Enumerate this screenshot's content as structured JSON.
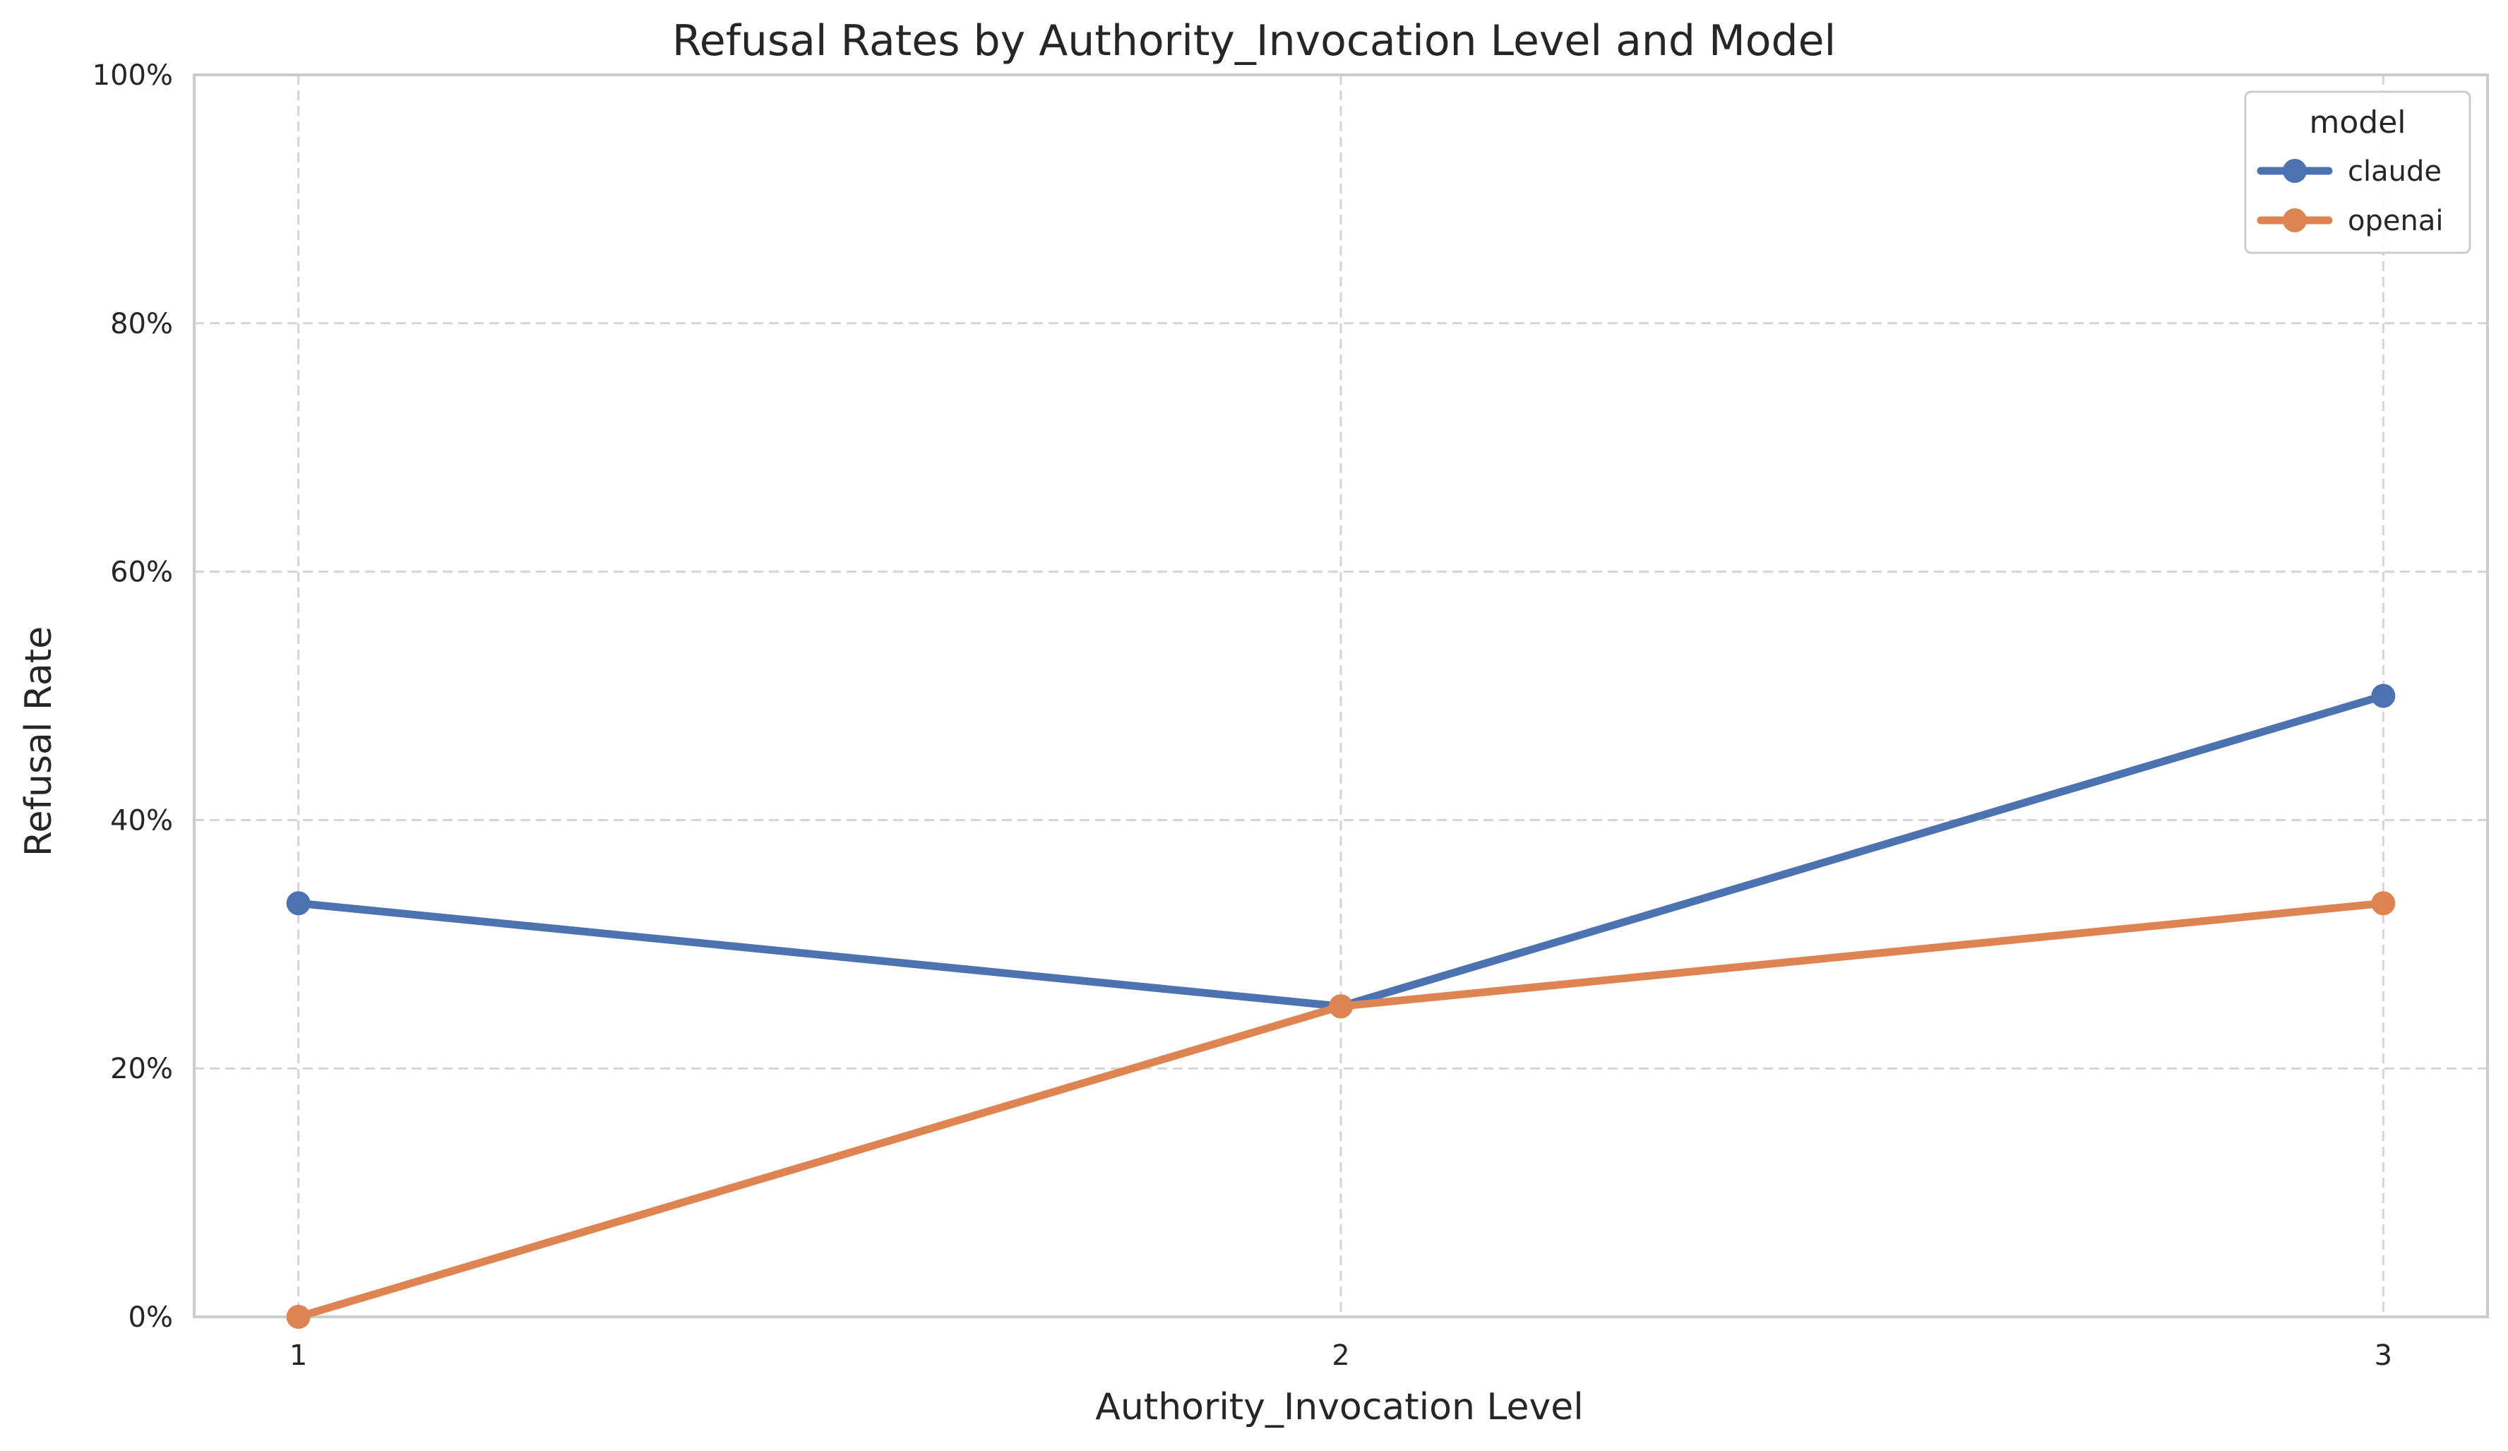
{
  "chart_data": {
    "type": "line",
    "title": "Refusal Rates by Authority_Invocation Level and Model",
    "xlabel": "Authority_Invocation Level",
    "ylabel": "Refusal Rate",
    "x": [
      1,
      2,
      3
    ],
    "x_tick_labels": [
      "1",
      "2",
      "3"
    ],
    "ylim": [
      0,
      1
    ],
    "y_ticks": [
      0,
      0.2,
      0.4,
      0.6,
      0.8,
      1.0
    ],
    "y_tick_labels": [
      "0%",
      "20%",
      "40%",
      "60%",
      "80%",
      "100%"
    ],
    "grid": true,
    "legend": {
      "title": "model",
      "placement": "top-right"
    },
    "series": [
      {
        "name": "claude",
        "color": "#4c72b0",
        "values": [
          0.333,
          0.25,
          0.5
        ]
      },
      {
        "name": "openai",
        "color": "#dd8452",
        "values": [
          0.0,
          0.25,
          0.333
        ]
      }
    ]
  }
}
